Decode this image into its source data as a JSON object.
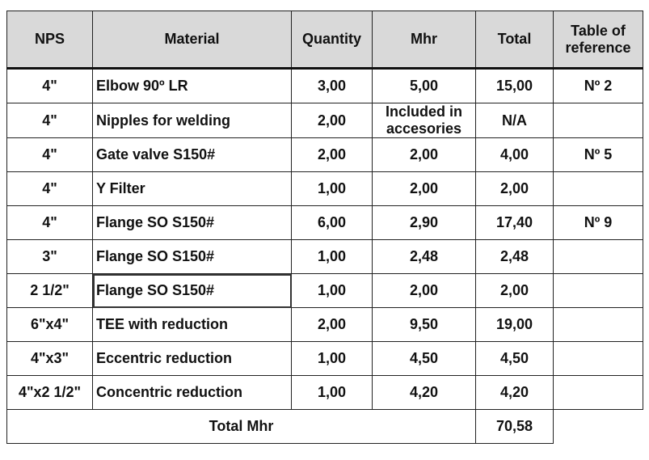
{
  "headers": {
    "nps": "NPS",
    "material": "Material",
    "quantity": "Quantity",
    "mhr": "Mhr",
    "total": "Total",
    "reference": "Table of reference"
  },
  "rows": [
    {
      "nps": "4\"",
      "material": "Elbow 90º LR",
      "quantity": "3,00",
      "mhr": "5,00",
      "total": "15,00",
      "reference": "Nº 2"
    },
    {
      "nps": "4\"",
      "material": "Nipples for welding",
      "quantity": "2,00",
      "mhr": "Included in accesories",
      "total": "N/A",
      "reference": ""
    },
    {
      "nps": "4\"",
      "material": "Gate valve S150#",
      "quantity": "2,00",
      "mhr": "2,00",
      "total": "4,00",
      "reference": "Nº 5"
    },
    {
      "nps": "4\"",
      "material": "Y Filter",
      "quantity": "1,00",
      "mhr": "2,00",
      "total": "2,00",
      "reference": ""
    },
    {
      "nps": "4\"",
      "material": "Flange SO S150#",
      "quantity": "6,00",
      "mhr": "2,90",
      "total": "17,40",
      "reference": "Nº 9"
    },
    {
      "nps": "3\"",
      "material": "Flange SO S150#",
      "quantity": "1,00",
      "mhr": "2,48",
      "total": "2,48",
      "reference": ""
    },
    {
      "nps": "2 1/2\"",
      "material": "Flange SO S150#",
      "quantity": "1,00",
      "mhr": "2,00",
      "total": "2,00",
      "reference": ""
    },
    {
      "nps": "6\"x4\"",
      "material": "TEE with reduction",
      "quantity": "2,00",
      "mhr": "9,50",
      "total": "19,00",
      "reference": ""
    },
    {
      "nps": "4\"x3\"",
      "material": "Eccentric reduction",
      "quantity": "1,00",
      "mhr": "4,50",
      "total": "4,50",
      "reference": ""
    },
    {
      "nps": "4\"x2 1/2\"",
      "material": "Concentric reduction",
      "quantity": "1,00",
      "mhr": "4,20",
      "total": "4,20",
      "reference": ""
    }
  ],
  "footer": {
    "label": "Total Mhr",
    "total": "70,58"
  }
}
